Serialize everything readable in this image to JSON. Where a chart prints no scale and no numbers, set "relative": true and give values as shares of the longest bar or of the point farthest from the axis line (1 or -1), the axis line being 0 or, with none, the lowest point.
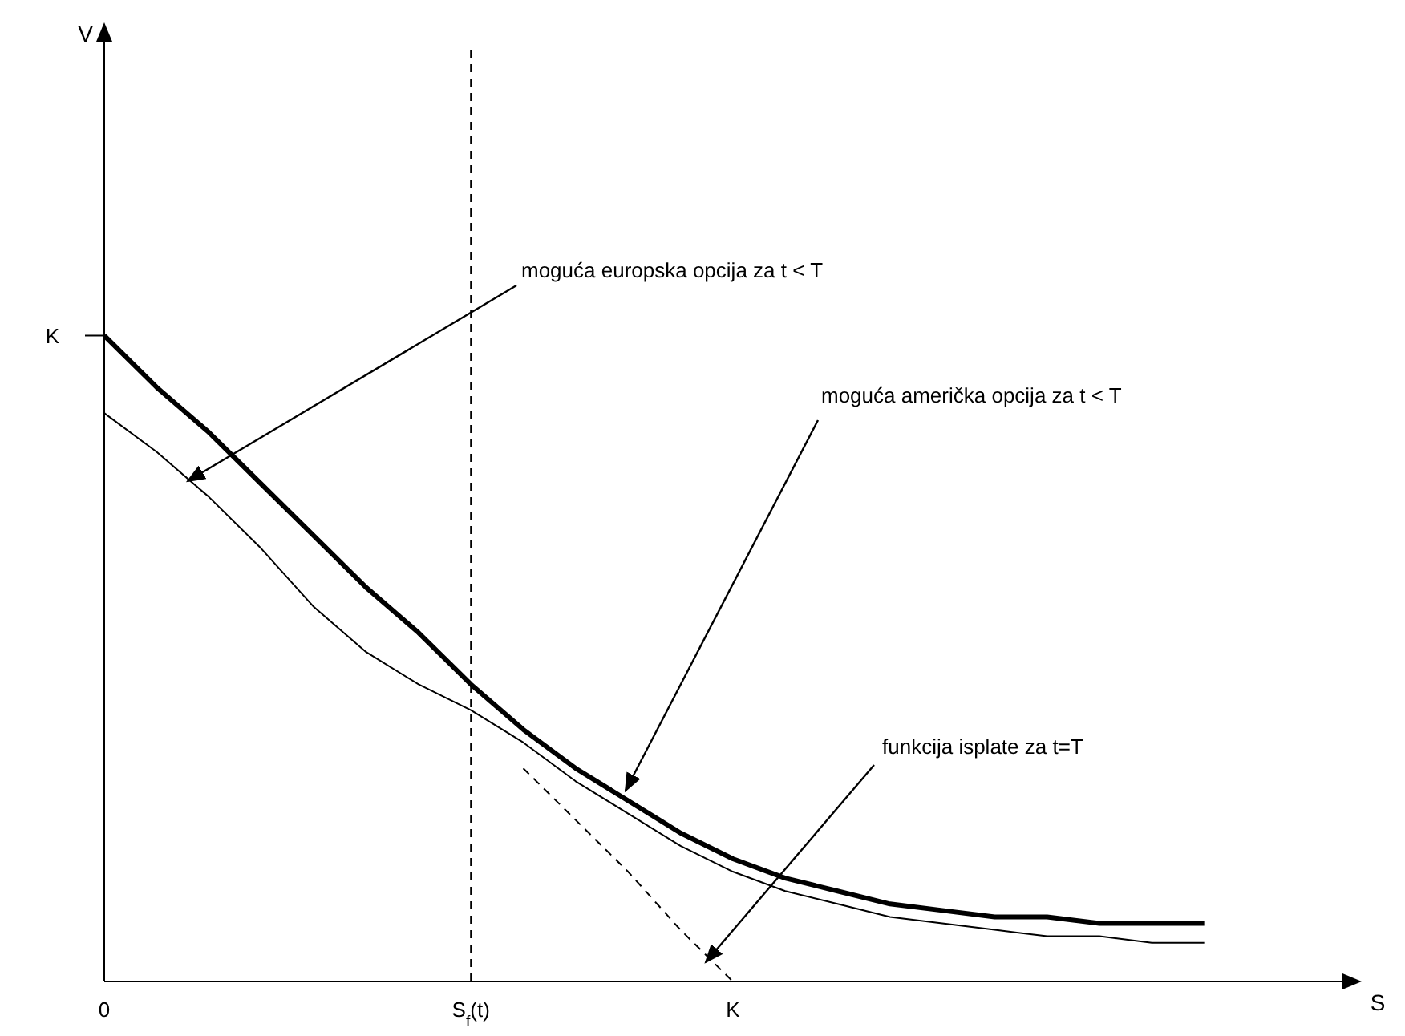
{
  "chart_data": {
    "type": "line",
    "relative": true,
    "xlabel": "S",
    "categories": [
      "0",
      null,
      null,
      null,
      null,
      null,
      null,
      "S$_{f}$(t)",
      null,
      null,
      null,
      null,
      "K",
      null,
      null,
      null,
      null,
      null,
      null,
      null,
      null,
      null,
      null,
      null
    ],
    "series": [
      {
        "color": "#000000",
        "values": [
          1,
          0.92,
          0.85,
          0.77,
          0.69,
          0.61,
          0.54,
          0.46,
          0.39,
          0.33,
          0.28,
          0.23,
          0.19,
          0.16,
          0.14,
          0.12,
          0.11,
          0.1,
          0.1,
          0.09,
          0.09,
          0.09,
          null,
          null
        ]
      },
      {
        "color": "#000000",
        "values": [
          0.88,
          0.82,
          0.75,
          0.67,
          0.58,
          0.51,
          0.46,
          0.42,
          0.37,
          0.31,
          0.26,
          0.21,
          0.17,
          0.14,
          0.12,
          0.1,
          0.09,
          0.08,
          0.07,
          0.07,
          0.06,
          0.06,
          null,
          null
        ]
      },
      {
        "color": "#000000",
        "line_style": "dashed",
        "values": [
          null,
          null,
          null,
          null,
          null,
          null,
          null,
          null,
          0.33,
          0.25,
          0.17,
          0.08,
          0,
          null,
          null,
          null,
          null,
          null,
          null,
          null,
          null,
          null,
          null,
          null
        ]
      }
    ],
    "ref_lines": [
      {
        "axis": "x",
        "value": "S$_{f}$(t)",
        "line_style": "dashed",
        "color": "#000000"
      }
    ],
    "annotations": [
      "moguća europska opcija za t < T",
      "moguća američka opcija za t < T",
      "funkcija isplate za t=T",
      "K",
      "V"
    ],
    "marker": "none",
    "legend": false,
    "grid": false
  }
}
